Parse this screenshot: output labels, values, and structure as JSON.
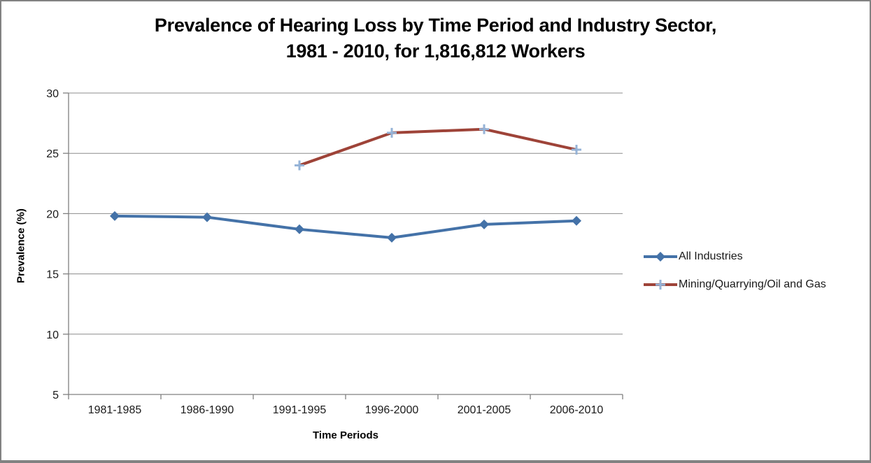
{
  "chart_data": {
    "type": "line",
    "title": "Prevalence of Hearing Loss by Time Period and Industry Sector, 1981 - 2010, for 1,816,812 Workers",
    "title_lines": [
      "Prevalence of Hearing Loss by Time Period and Industry Sector,",
      "1981 - 2010, for 1,816,812 Workers"
    ],
    "xlabel": "Time Periods",
    "ylabel": "Prevalence (%)",
    "categories": [
      "1981-1985",
      "1986-1990",
      "1991-1995",
      "1996-2000",
      "2001-2005",
      "2006-2010"
    ],
    "series": [
      {
        "name": "All Industries",
        "color": "#4472A8",
        "marker": "diamond",
        "marker_color": "#4472A8",
        "values": [
          19.8,
          19.7,
          18.7,
          18.0,
          19.1,
          19.4
        ]
      },
      {
        "name": "Mining/Quarrying/Oil and Gas",
        "color": "#9E4338",
        "marker": "plus",
        "marker_color": "#95B3D7",
        "values": [
          null,
          null,
          24.0,
          26.7,
          27.0,
          25.3
        ]
      }
    ],
    "ylim": [
      5,
      30
    ],
    "yticks": [
      5,
      10,
      15,
      20,
      25,
      30
    ],
    "grid": "horizontal",
    "legend_position": "right"
  },
  "colors": {
    "background": "#FFFFFF",
    "border": "#828282",
    "gridline": "#8C8C8C",
    "axis": "#808080",
    "title_text": "#000000",
    "tick_text": "#1A1A1A"
  }
}
